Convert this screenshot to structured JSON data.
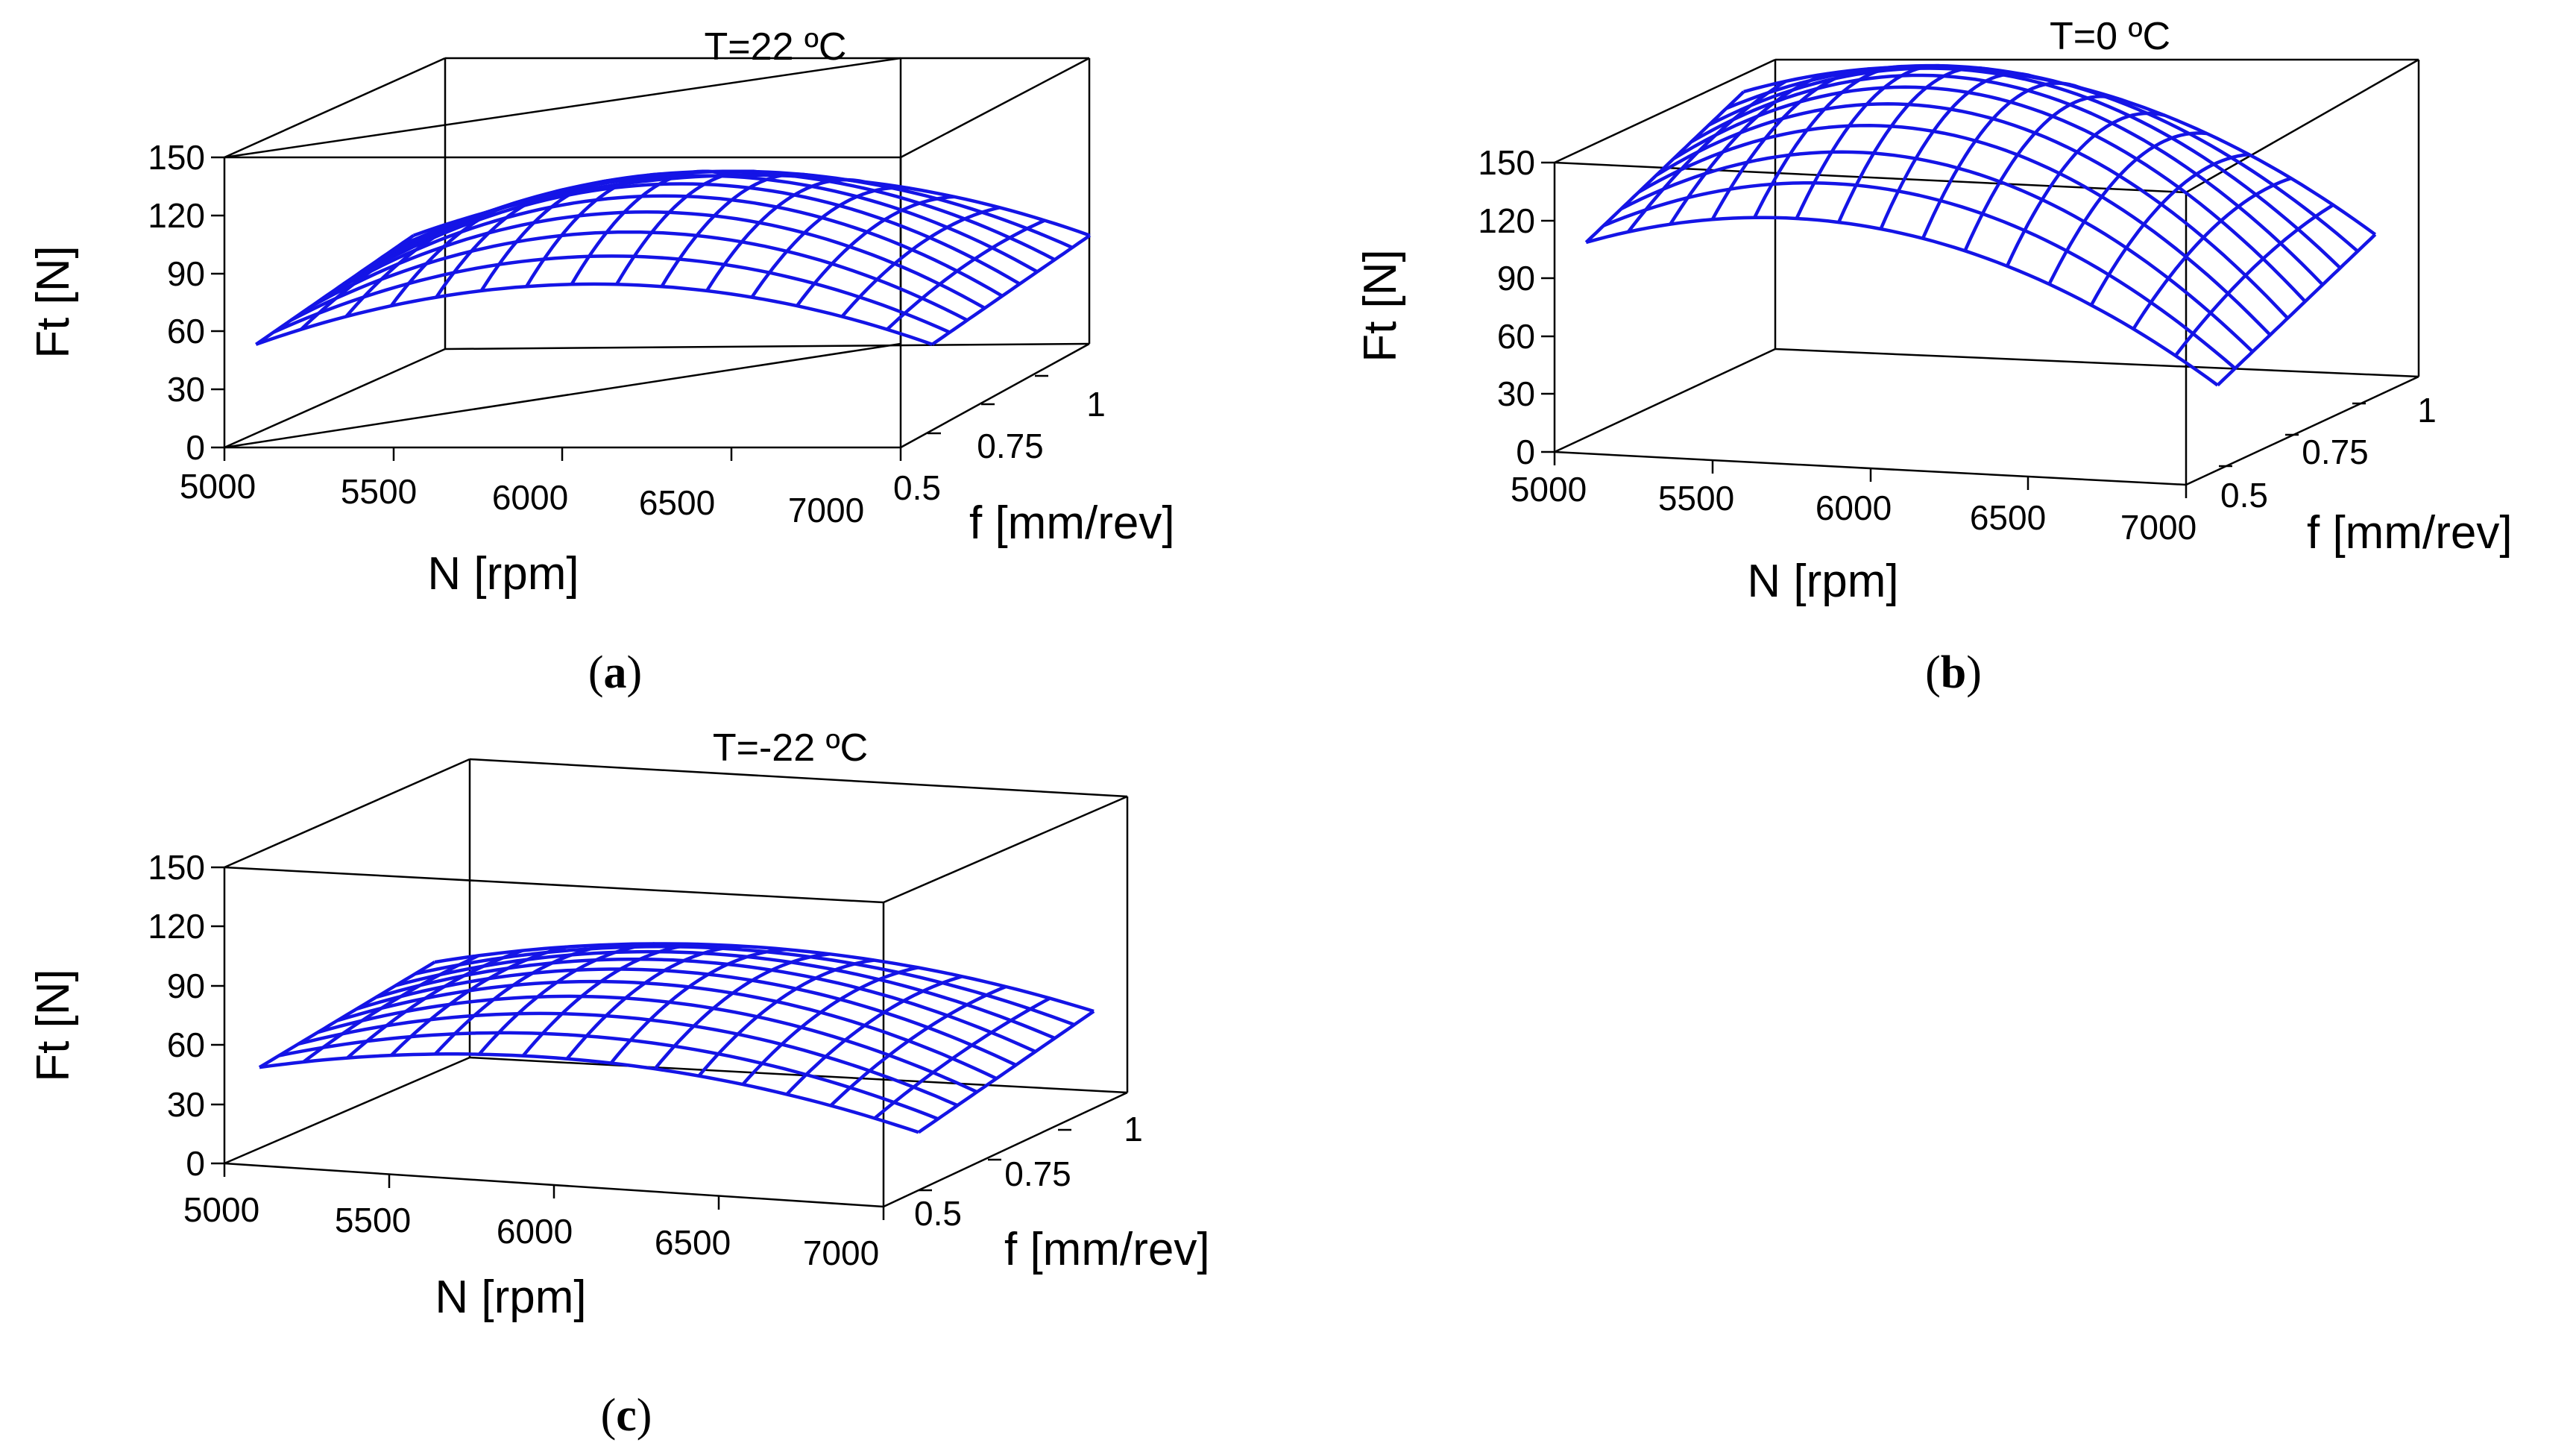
{
  "chart_data": [
    {
      "type": "surface3d",
      "panel": "(a)",
      "title": "T=22 ºC",
      "xlabel": "N [rpm]",
      "ylabel": "f [mm/rev]",
      "zlabel": "Ft [N]",
      "xticks": [
        "5000",
        "5500",
        "6000",
        "6500",
        "7000"
      ],
      "yticks": [
        "0.5",
        "0.75",
        "1"
      ],
      "zticks": [
        "0",
        "30",
        "60",
        "90",
        "120",
        "150"
      ],
      "xlim": [
        5000,
        7000
      ],
      "ylim": [
        0.4,
        1.1
      ],
      "zlim": [
        0,
        150
      ],
      "N": [
        5000,
        7000
      ],
      "f": [
        0.5,
        1.0
      ],
      "corners_Ft": {
        "N5000_f0.5": 46,
        "N7000_f0.5": 46,
        "N5000_f1.0": 66,
        "N7000_f1.0": 66
      },
      "peak_Ft": 108
    },
    {
      "type": "surface3d",
      "panel": "(b)",
      "title": "T=0 ºC",
      "xlabel": "N [rpm]",
      "ylabel": "f [mm/rev]",
      "zlabel": "Ft [N]",
      "xticks": [
        "5000",
        "5500",
        "6000",
        "6500",
        "7000"
      ],
      "yticks": [
        "0.5",
        "0.75",
        "1"
      ],
      "zticks": [
        "0",
        "30",
        "60",
        "90",
        "120",
        "150"
      ],
      "xlim": [
        5000,
        7000
      ],
      "ylim": [
        0.4,
        1.1
      ],
      "zlim": [
        0,
        150
      ],
      "N": [
        5000,
        7000
      ],
      "f": [
        0.5,
        1.0
      ],
      "corners_Ft": {
        "N5000_f0.5": 101,
        "N7000_f0.5": 44,
        "N5000_f1.0": 141,
        "N7000_f1.0": 84
      },
      "peak_Ft": 162
    },
    {
      "type": "surface3d",
      "panel": "(c)",
      "title": "T=-22 ºC",
      "xlabel": "N [rpm]",
      "ylabel": "f [mm/rev]",
      "zlabel": "Ft [N]",
      "xticks": [
        "5000",
        "5500",
        "6000",
        "6500",
        "7000"
      ],
      "yticks": [
        "0.5",
        "0.75",
        "1"
      ],
      "zticks": [
        "0",
        "30",
        "60",
        "90",
        "120",
        "150"
      ],
      "xlim": [
        5000,
        7000
      ],
      "ylim": [
        0.4,
        1.1
      ],
      "zlim": [
        0,
        150
      ],
      "N": [
        5000,
        7000
      ],
      "f": [
        0.5,
        1.0
      ],
      "corners_Ft": {
        "N5000_f0.5": 41,
        "N7000_f0.5": 30,
        "N5000_f1.0": 56,
        "N7000_f1.0": 53
      },
      "peak_Ft": 78
    }
  ],
  "captions": {
    "a": {
      "open": "(",
      "letter": "a",
      "close": ")"
    },
    "b": {
      "open": "(",
      "letter": "b",
      "close": ")"
    },
    "c": {
      "open": "(",
      "letter": "c",
      "close": ")"
    }
  },
  "colors": {
    "mesh": "#1414e6",
    "axes": "#000000"
  }
}
